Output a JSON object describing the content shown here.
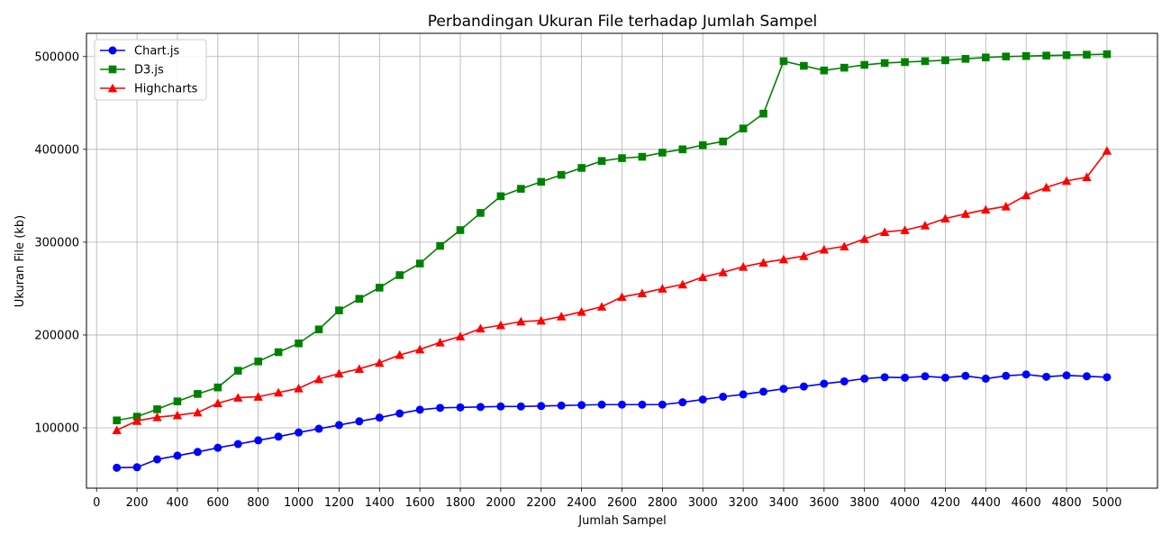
{
  "chart_data": {
    "type": "line",
    "title": "Perbandingan Ukuran File terhadap Jumlah Sampel",
    "xlabel": "Jumlah Sampel",
    "ylabel": "Ukuran File (kb)",
    "xlim": [
      -50,
      5250
    ],
    "ylim": [
      35000,
      525000
    ],
    "grid": true,
    "legend_position": "top-left",
    "x_ticks": [
      0,
      200,
      400,
      600,
      800,
      1000,
      1200,
      1400,
      1600,
      1800,
      2000,
      2200,
      2400,
      2600,
      2800,
      3000,
      3200,
      3400,
      3600,
      3800,
      4000,
      4200,
      4400,
      4600,
      4800,
      5000
    ],
    "y_ticks": [
      100000,
      200000,
      300000,
      400000,
      500000
    ],
    "x": [
      100,
      200,
      300,
      400,
      500,
      600,
      700,
      800,
      900,
      1000,
      1100,
      1200,
      1300,
      1400,
      1500,
      1600,
      1700,
      1800,
      1900,
      2000,
      2100,
      2200,
      2300,
      2400,
      2500,
      2600,
      2700,
      2800,
      2900,
      3000,
      3100,
      3200,
      3300,
      3400,
      3500,
      3600,
      3700,
      3800,
      3900,
      4000,
      4100,
      4200,
      4300,
      4400,
      4500,
      4600,
      4700,
      4800,
      4900,
      5000
    ],
    "series": [
      {
        "name": "Chart.js",
        "color": "#0000ff",
        "marker": "circle",
        "values": [
          57000,
          57500,
          66000,
          70000,
          74000,
          78500,
          82500,
          86500,
          90500,
          95000,
          99000,
          103000,
          107000,
          111000,
          115500,
          119500,
          121500,
          122000,
          122500,
          123000,
          123000,
          123500,
          124000,
          124500,
          125000,
          125000,
          125000,
          125000,
          127500,
          130500,
          133500,
          136000,
          139000,
          142000,
          144500,
          147500,
          150000,
          153000,
          154500,
          154000,
          155500,
          154000,
          156000,
          153000,
          156000,
          157500,
          155000,
          156500,
          155500,
          154500
        ]
      },
      {
        "name": "D3.js",
        "color": "#008000",
        "marker": "square",
        "values": [
          108000,
          112000,
          120000,
          128500,
          136500,
          143500,
          161500,
          171500,
          181500,
          191000,
          206000,
          226500,
          239000,
          251000,
          264500,
          277000,
          296000,
          313000,
          331500,
          349500,
          357500,
          365000,
          372500,
          380000,
          387500,
          390500,
          392000,
          396500,
          400000,
          404500,
          408500,
          422500,
          438500,
          495000,
          490000,
          485000,
          488000,
          491000,
          493000,
          494000,
          495000,
          496000,
          497500,
          499000,
          500000,
          500500,
          501000,
          501500,
          502000,
          502500
        ]
      },
      {
        "name": "Highcharts",
        "color": "#ff0000",
        "marker": "triangle",
        "values": [
          97500,
          107500,
          111500,
          113500,
          116500,
          126500,
          132500,
          133500,
          138000,
          142500,
          152500,
          158500,
          163500,
          170000,
          178500,
          184500,
          192000,
          198500,
          207000,
          210500,
          214500,
          215500,
          220000,
          225000,
          230500,
          241000,
          245000,
          250000,
          254500,
          262500,
          267500,
          273500,
          278000,
          281500,
          285000,
          292000,
          295500,
          303500,
          311000,
          313000,
          318000,
          325500,
          330500,
          335000,
          338500,
          350500,
          359000,
          366000,
          370000,
          398500
        ]
      }
    ]
  }
}
